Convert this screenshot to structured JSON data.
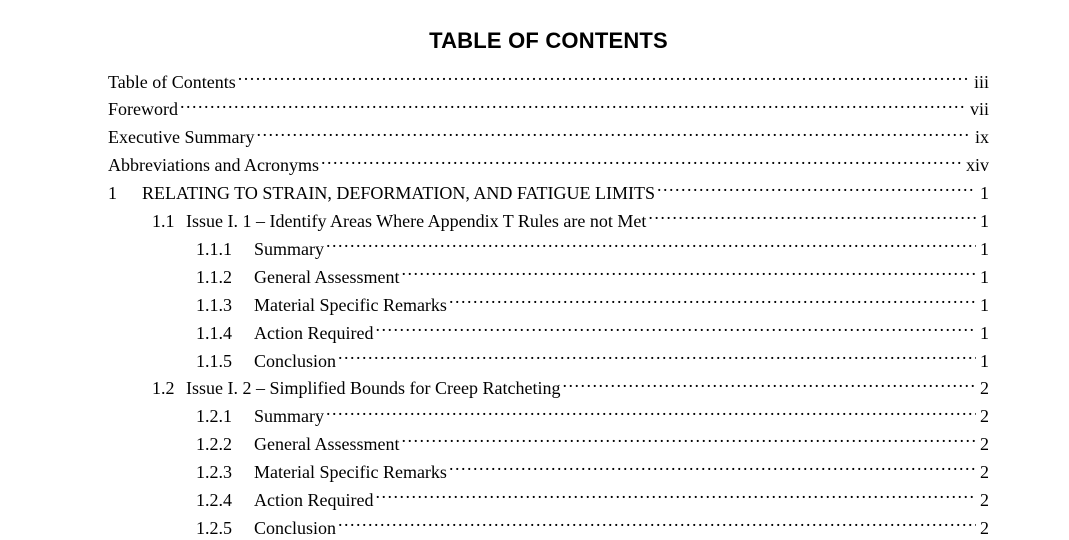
{
  "title": "TABLE OF CONTENTS",
  "font": {
    "title_family": "Arial",
    "body_family": "Times New Roman",
    "title_size_pt": 16,
    "body_size_pt": 13
  },
  "colors": {
    "text": "#000000",
    "background": "#ffffff"
  },
  "entries": [
    {
      "level": 0,
      "num": "",
      "label": "Table of Contents",
      "page": "iii"
    },
    {
      "level": 0,
      "num": "",
      "label": "Foreword",
      "page": "vii"
    },
    {
      "level": 0,
      "num": "",
      "label": "Executive Summary",
      "page": "ix"
    },
    {
      "level": 0,
      "num": "",
      "label": "Abbreviations and Acronyms",
      "page": "xiv"
    },
    {
      "level": 1,
      "num": "1",
      "label": "RELATING TO STRAIN, DEFORMATION, AND FATIGUE LIMITS",
      "page": "1"
    },
    {
      "level": 2,
      "num": "1.1",
      "label": "Issue I. 1 – Identify Areas Where Appendix T Rules are not Met",
      "page": "1"
    },
    {
      "level": 3,
      "num": "1.1.1",
      "label": "Summary",
      "page": "1"
    },
    {
      "level": 3,
      "num": "1.1.2",
      "label": "General Assessment",
      "page": "1"
    },
    {
      "level": 3,
      "num": "1.1.3",
      "label": "Material Specific Remarks",
      "page": "1"
    },
    {
      "level": 3,
      "num": "1.1.4",
      "label": "Action Required",
      "page": "1"
    },
    {
      "level": 3,
      "num": "1.1.5",
      "label": "Conclusion",
      "page": "1"
    },
    {
      "level": 2,
      "num": "1.2",
      "label": "Issue I. 2 – Simplified Bounds for Creep Ratcheting",
      "page": "2"
    },
    {
      "level": 3,
      "num": "1.2.1",
      "label": "Summary",
      "page": "2"
    },
    {
      "level": 3,
      "num": "1.2.2",
      "label": "General Assessment",
      "page": "2"
    },
    {
      "level": 3,
      "num": "1.2.3",
      "label": "Material Specific Remarks",
      "page": "2"
    },
    {
      "level": 3,
      "num": "1.2.4",
      "label": "Action Required",
      "page": "2"
    },
    {
      "level": 3,
      "num": "1.2.5",
      "label": "Conclusion",
      "page": "2"
    }
  ]
}
